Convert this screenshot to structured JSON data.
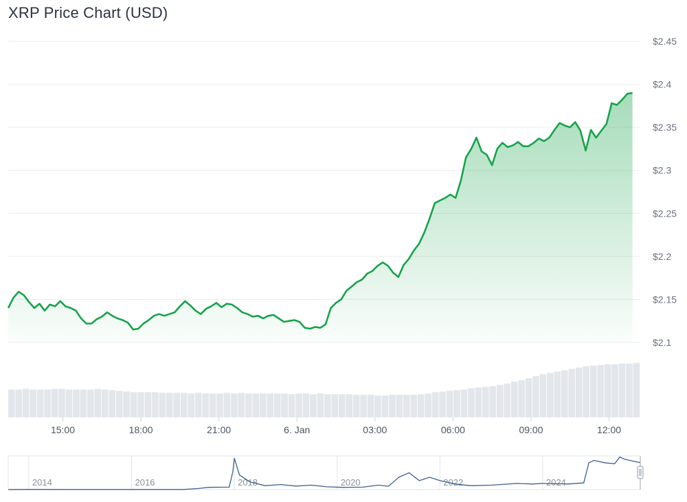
{
  "chart_data": [
    {
      "type": "area",
      "title": "XRP Price Chart (USD)",
      "ylim": [
        2.1,
        2.45
      ],
      "y_ticks": [
        "$2.45",
        "$2.4",
        "$2.35",
        "$2.3",
        "$2.25",
        "$2.2",
        "$2.15",
        "$2.1"
      ],
      "y_tick_values": [
        2.45,
        2.4,
        2.35,
        2.3,
        2.25,
        2.2,
        2.15,
        2.1
      ],
      "x_ticks": [
        "15:00",
        "18:00",
        "21:00",
        "6. Jan",
        "03:00",
        "06:00",
        "09:00",
        "12:00"
      ],
      "x_range_hours": [
        12.9,
        37.2
      ],
      "x_tick_hours": [
        15,
        18,
        21,
        24,
        27,
        30,
        33,
        36
      ],
      "grid": true,
      "series": [
        {
          "color": "#16a34a",
          "points": [
            [
              12.9,
              2.14
            ],
            [
              13.1,
              2.152
            ],
            [
              13.3,
              2.159
            ],
            [
              13.5,
              2.155
            ],
            [
              13.7,
              2.147
            ],
            [
              13.9,
              2.14
            ],
            [
              14.1,
              2.145
            ],
            [
              14.3,
              2.137
            ],
            [
              14.5,
              2.144
            ],
            [
              14.7,
              2.142
            ],
            [
              14.9,
              2.148
            ],
            [
              15.1,
              2.142
            ],
            [
              15.3,
              2.14
            ],
            [
              15.5,
              2.137
            ],
            [
              15.7,
              2.128
            ],
            [
              15.9,
              2.122
            ],
            [
              16.1,
              2.122
            ],
            [
              16.3,
              2.127
            ],
            [
              16.5,
              2.13
            ],
            [
              16.7,
              2.135
            ],
            [
              16.9,
              2.131
            ],
            [
              17.1,
              2.128
            ],
            [
              17.3,
              2.126
            ],
            [
              17.5,
              2.123
            ],
            [
              17.7,
              2.115
            ],
            [
              17.9,
              2.116
            ],
            [
              18.1,
              2.122
            ],
            [
              18.3,
              2.126
            ],
            [
              18.5,
              2.131
            ],
            [
              18.7,
              2.133
            ],
            [
              18.9,
              2.131
            ],
            [
              19.1,
              2.133
            ],
            [
              19.3,
              2.135
            ],
            [
              19.5,
              2.142
            ],
            [
              19.7,
              2.148
            ],
            [
              19.9,
              2.143
            ],
            [
              20.1,
              2.137
            ],
            [
              20.3,
              2.133
            ],
            [
              20.5,
              2.139
            ],
            [
              20.7,
              2.142
            ],
            [
              20.9,
              2.146
            ],
            [
              21.1,
              2.141
            ],
            [
              21.3,
              2.145
            ],
            [
              21.5,
              2.144
            ],
            [
              21.7,
              2.14
            ],
            [
              21.9,
              2.135
            ],
            [
              22.1,
              2.133
            ],
            [
              22.3,
              2.13
            ],
            [
              22.5,
              2.131
            ],
            [
              22.7,
              2.128
            ],
            [
              22.9,
              2.131
            ],
            [
              23.1,
              2.132
            ],
            [
              23.3,
              2.128
            ],
            [
              23.5,
              2.124
            ],
            [
              23.7,
              2.125
            ],
            [
              23.9,
              2.126
            ],
            [
              24.1,
              2.124
            ],
            [
              24.3,
              2.117
            ],
            [
              24.5,
              2.116
            ],
            [
              24.7,
              2.118
            ],
            [
              24.9,
              2.117
            ],
            [
              25.1,
              2.121
            ],
            [
              25.3,
              2.14
            ],
            [
              25.5,
              2.146
            ],
            [
              25.7,
              2.15
            ],
            [
              25.9,
              2.16
            ],
            [
              26.1,
              2.165
            ],
            [
              26.3,
              2.17
            ],
            [
              26.5,
              2.173
            ],
            [
              26.7,
              2.18
            ],
            [
              26.9,
              2.183
            ],
            [
              27.1,
              2.189
            ],
            [
              27.3,
              2.193
            ],
            [
              27.5,
              2.189
            ],
            [
              27.7,
              2.181
            ],
            [
              27.9,
              2.176
            ],
            [
              28.1,
              2.19
            ],
            [
              28.3,
              2.197
            ],
            [
              28.5,
              2.207
            ],
            [
              28.7,
              2.215
            ],
            [
              28.9,
              2.228
            ],
            [
              29.1,
              2.244
            ],
            [
              29.3,
              2.262
            ],
            [
              29.5,
              2.265
            ],
            [
              29.7,
              2.268
            ],
            [
              29.9,
              2.272
            ],
            [
              30.1,
              2.268
            ],
            [
              30.3,
              2.288
            ],
            [
              30.5,
              2.315
            ],
            [
              30.7,
              2.325
            ],
            [
              30.9,
              2.338
            ],
            [
              31.1,
              2.322
            ],
            [
              31.3,
              2.318
            ],
            [
              31.5,
              2.306
            ],
            [
              31.7,
              2.325
            ],
            [
              31.9,
              2.332
            ],
            [
              32.1,
              2.327
            ],
            [
              32.3,
              2.329
            ],
            [
              32.5,
              2.333
            ],
            [
              32.7,
              2.328
            ],
            [
              32.9,
              2.328
            ],
            [
              33.1,
              2.332
            ],
            [
              33.3,
              2.337
            ],
            [
              33.5,
              2.334
            ],
            [
              33.7,
              2.338
            ],
            [
              33.9,
              2.347
            ],
            [
              34.1,
              2.355
            ],
            [
              34.3,
              2.352
            ],
            [
              34.5,
              2.35
            ],
            [
              34.7,
              2.356
            ],
            [
              34.9,
              2.346
            ],
            [
              35.1,
              2.323
            ],
            [
              35.3,
              2.347
            ],
            [
              35.5,
              2.338
            ],
            [
              35.7,
              2.346
            ],
            [
              35.9,
              2.354
            ],
            [
              36.1,
              2.378
            ],
            [
              36.3,
              2.376
            ],
            [
              36.5,
              2.382
            ],
            [
              36.7,
              2.389
            ],
            [
              36.9,
              2.39
            ]
          ]
        }
      ]
    },
    {
      "type": "bar",
      "role": "volume",
      "values": [
        42,
        42,
        43,
        42,
        42,
        42,
        43,
        43,
        42,
        42,
        42,
        42,
        43,
        42,
        41,
        40,
        39,
        38,
        38,
        38,
        38,
        37,
        37,
        37,
        37,
        36,
        37,
        36,
        36,
        36,
        37,
        36,
        37,
        36,
        36,
        36,
        36,
        36,
        36,
        35,
        36,
        36,
        35,
        36,
        35,
        35,
        35,
        35,
        34,
        34,
        34,
        33,
        33,
        34,
        34,
        34,
        34,
        35,
        36,
        38,
        39,
        40,
        41,
        42,
        44,
        45,
        46,
        47,
        49,
        51,
        54,
        56,
        59,
        62,
        65,
        67,
        69,
        71,
        73,
        75,
        77,
        78,
        79,
        80,
        80,
        81,
        81,
        82
      ]
    },
    {
      "type": "line",
      "role": "navigator",
      "x_ticks": [
        "2014",
        "2016",
        "2018",
        "2020",
        "2022",
        "2024"
      ],
      "x_tick_years": [
        2014,
        2016,
        2018,
        2020,
        2022,
        2024
      ],
      "x_range_years": [
        2013.6,
        2025.9
      ],
      "ylim": [
        0,
        3.0
      ],
      "points": [
        [
          2013.6,
          0.01
        ],
        [
          2014.0,
          0.02
        ],
        [
          2015.0,
          0.01
        ],
        [
          2016.0,
          0.01
        ],
        [
          2017.0,
          0.01
        ],
        [
          2017.3,
          0.1
        ],
        [
          2017.5,
          0.2
        ],
        [
          2017.9,
          0.22
        ],
        [
          2017.97,
          1.6
        ],
        [
          2018.0,
          2.8
        ],
        [
          2018.1,
          1.3
        ],
        [
          2018.3,
          0.7
        ],
        [
          2018.6,
          0.35
        ],
        [
          2018.9,
          0.45
        ],
        [
          2019.2,
          0.32
        ],
        [
          2019.5,
          0.4
        ],
        [
          2019.8,
          0.25
        ],
        [
          2020.1,
          0.2
        ],
        [
          2020.5,
          0.22
        ],
        [
          2020.8,
          0.4
        ],
        [
          2021.0,
          0.3
        ],
        [
          2021.2,
          1.1
        ],
        [
          2021.4,
          1.5
        ],
        [
          2021.6,
          0.8
        ],
        [
          2021.8,
          1.1
        ],
        [
          2022.0,
          0.8
        ],
        [
          2022.3,
          0.5
        ],
        [
          2022.6,
          0.35
        ],
        [
          2023.0,
          0.4
        ],
        [
          2023.5,
          0.55
        ],
        [
          2023.8,
          0.5
        ],
        [
          2024.0,
          0.55
        ],
        [
          2024.5,
          0.5
        ],
        [
          2024.8,
          0.6
        ],
        [
          2024.9,
          2.4
        ],
        [
          2025.0,
          2.6
        ],
        [
          2025.2,
          2.4
        ],
        [
          2025.4,
          2.3
        ],
        [
          2025.5,
          2.9
        ],
        [
          2025.6,
          2.7
        ],
        [
          2025.8,
          2.5
        ],
        [
          2025.9,
          2.4
        ]
      ]
    }
  ]
}
